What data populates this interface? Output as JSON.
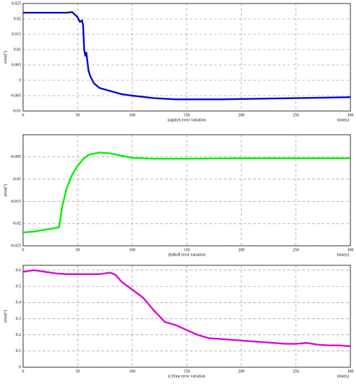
{
  "chart_data": [
    {
      "type": "line",
      "caption": "(a)pitch error variation",
      "xlabel": "time(s)",
      "ylabel": "error(°)",
      "color": "#0000dd",
      "xlim": [
        0,
        300
      ],
      "xticks": [
        0,
        50,
        100,
        150,
        200,
        250,
        300
      ],
      "ylim": [
        -0.01,
        0.025
      ],
      "yticks": [
        -0.01,
        -0.005,
        0,
        0.005,
        0.01,
        0.015,
        0.02,
        0.025
      ],
      "grid": true,
      "x": [
        0,
        10,
        20,
        30,
        40,
        45,
        50,
        52,
        54,
        55,
        56,
        57,
        58,
        59,
        60,
        62,
        65,
        70,
        80,
        90,
        100,
        120,
        140,
        160,
        180,
        200,
        250,
        300
      ],
      "values": [
        0.022,
        0.022,
        0.022,
        0.022,
        0.022,
        0.0222,
        0.0205,
        0.019,
        0.0195,
        0.018,
        0.01,
        0.008,
        0.009,
        0.006,
        0.003,
        0.001,
        -0.001,
        -0.0025,
        -0.0035,
        -0.0045,
        -0.005,
        -0.0058,
        -0.0062,
        -0.0062,
        -0.0062,
        -0.0061,
        -0.0058,
        -0.0055
      ]
    },
    {
      "type": "line",
      "caption": "(b)Roll error variation",
      "xlabel": "time(s)",
      "ylabel": "error(°)",
      "color": "#00ee00",
      "xlim": [
        0,
        300
      ],
      "xticks": [
        0,
        50,
        100,
        150,
        200,
        250,
        300
      ],
      "ylim": [
        -0.025,
        0
      ],
      "yticks": [
        -0.025,
        -0.02,
        -0.015,
        -0.01,
        -0.005
      ],
      "grid": true,
      "x": [
        0,
        10,
        20,
        30,
        33,
        36,
        40,
        45,
        50,
        55,
        60,
        70,
        80,
        90,
        100,
        120,
        140,
        200,
        250,
        300
      ],
      "values": [
        -0.022,
        -0.0218,
        -0.0214,
        -0.021,
        -0.0208,
        -0.016,
        -0.012,
        -0.009,
        -0.007,
        -0.0055,
        -0.0045,
        -0.004,
        -0.0042,
        -0.0047,
        -0.0052,
        -0.0054,
        -0.0054,
        -0.0053,
        -0.0053,
        -0.0053
      ]
    },
    {
      "type": "line",
      "caption": "(c)Yaw error variation",
      "xlabel": "time(s)",
      "ylabel": "error(°)",
      "color": "#dd00dd",
      "xlim": [
        0,
        300
      ],
      "xticks": [
        0,
        50,
        100,
        150,
        200,
        250,
        300
      ],
      "ylim": [
        0,
        0.63
      ],
      "yticks": [
        0,
        0.1,
        0.2,
        0.3,
        0.4,
        0.5,
        0.6
      ],
      "grid": true,
      "x": [
        0,
        10,
        20,
        30,
        40,
        50,
        60,
        70,
        80,
        85,
        90,
        100,
        110,
        120,
        130,
        140,
        150,
        160,
        170,
        180,
        190,
        200,
        210,
        220,
        230,
        240,
        250,
        260,
        270,
        280,
        290,
        300
      ],
      "values": [
        0.59,
        0.6,
        0.59,
        0.58,
        0.575,
        0.575,
        0.575,
        0.575,
        0.585,
        0.57,
        0.53,
        0.48,
        0.43,
        0.35,
        0.28,
        0.26,
        0.23,
        0.2,
        0.18,
        0.175,
        0.17,
        0.165,
        0.16,
        0.155,
        0.15,
        0.145,
        0.145,
        0.15,
        0.14,
        0.135,
        0.135,
        0.13
      ]
    }
  ]
}
